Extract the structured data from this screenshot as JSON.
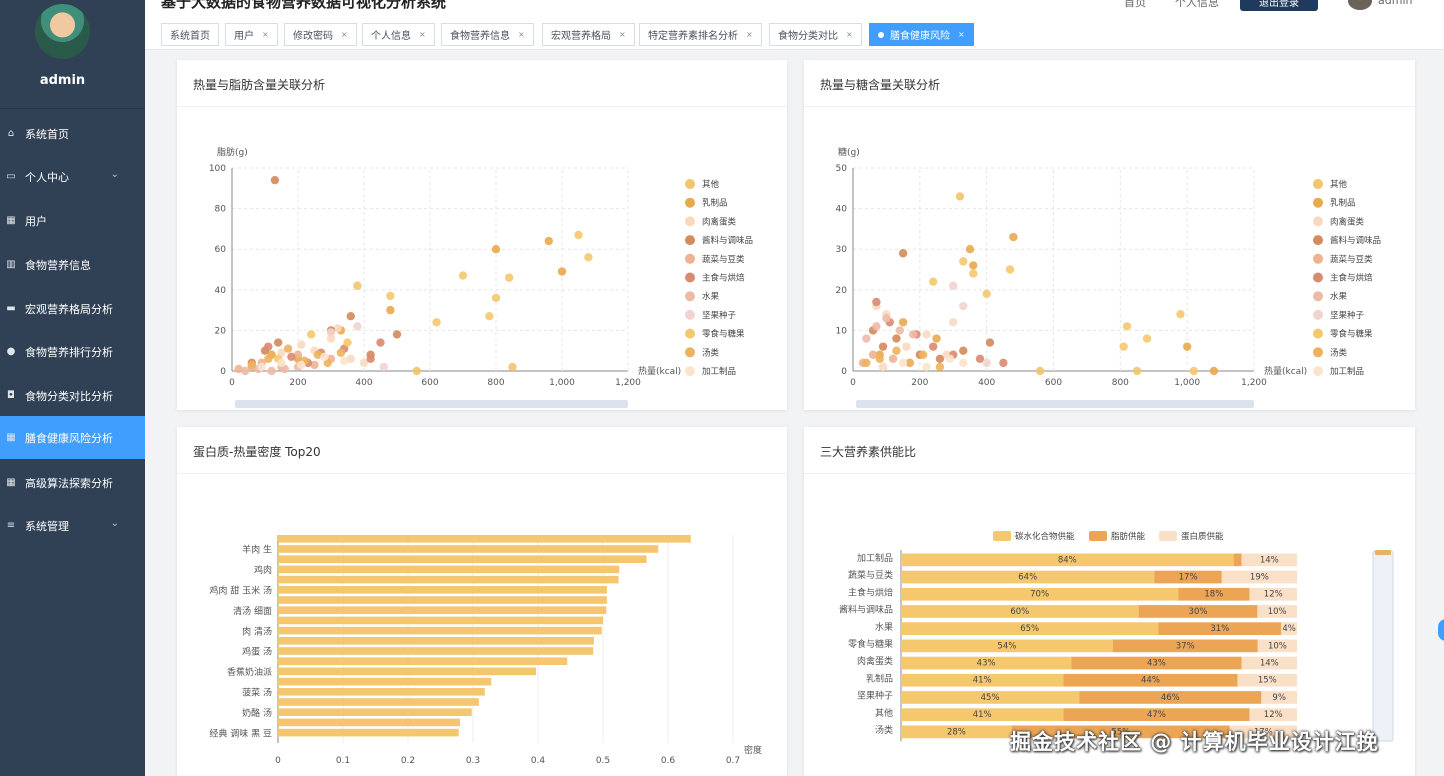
{
  "sidebar": {
    "username": "admin",
    "items": [
      {
        "label": "系统首页",
        "icon": "home-icon",
        "glyph": "⌂",
        "arrow": false,
        "active": false
      },
      {
        "label": "个人中心",
        "icon": "user-center-icon",
        "glyph": "▭",
        "arrow": true,
        "active": false
      },
      {
        "label": "用户",
        "icon": "grid-icon",
        "glyph": "▦",
        "arrow": false,
        "active": false
      },
      {
        "label": "食物营养信息",
        "icon": "bar-chart-icon",
        "glyph": "▥",
        "arrow": false,
        "active": false
      },
      {
        "label": "宏观营养格局分析",
        "icon": "monitor-icon",
        "glyph": "▬",
        "arrow": false,
        "active": false
      },
      {
        "label": "食物营养排行分析",
        "icon": "bulb-icon",
        "glyph": "●",
        "arrow": false,
        "active": false
      },
      {
        "label": "食物分类对比分析",
        "icon": "tag-icon",
        "glyph": "◘",
        "arrow": false,
        "active": false
      },
      {
        "label": "膳食健康风险分析",
        "icon": "grid-icon",
        "glyph": "▦",
        "arrow": false,
        "active": true
      },
      {
        "label": "高级算法探索分析",
        "icon": "grid-icon",
        "glyph": "▦",
        "arrow": false,
        "active": false
      },
      {
        "label": "系统管理",
        "icon": "sliders-icon",
        "glyph": "≡",
        "arrow": true,
        "active": false
      }
    ]
  },
  "topbar": {
    "title": "基于大数据的食物营养数据可视化分析系统",
    "link1": "首页",
    "link2": "个人信息",
    "button": "退出登录",
    "user": "admin"
  },
  "tabs": [
    {
      "label": "系统首页",
      "closable": false,
      "active": false
    },
    {
      "label": "用户",
      "closable": true,
      "active": false
    },
    {
      "label": "修改密码",
      "closable": true,
      "active": false
    },
    {
      "label": "个人信息",
      "closable": true,
      "active": false
    },
    {
      "label": "食物营养信息",
      "closable": true,
      "active": false
    },
    {
      "label": "宏观营养格局",
      "closable": true,
      "active": false
    },
    {
      "label": "特定营养素排名分析",
      "closable": true,
      "active": false
    },
    {
      "label": "食物分类对比",
      "closable": true,
      "active": false
    },
    {
      "label": "膳食健康风险",
      "closable": true,
      "active": true
    }
  ],
  "close_glyph": "×",
  "panels": {
    "p1": {
      "title": "热量与脂肪含量关联分析"
    },
    "p2": {
      "title": "热量与糖含量关联分析"
    },
    "p3": {
      "title": "蛋白质-热量密度 Top20"
    },
    "p4": {
      "title": "三大营养素供能比"
    }
  },
  "colors": {
    "sidebar": "#304156",
    "active": "#409eff",
    "categories": [
      "#f2c46d",
      "#e9a94e",
      "#f8d9c0",
      "#d38a5c",
      "#efb290",
      "#d98a72",
      "#edbaa8",
      "#f1d4cf",
      "#f5c86e",
      "#eeb15e",
      "#fbe3cc"
    ]
  },
  "watermark": "掘金技术社区 @ 计算机毕业设计江挽",
  "chart_data": [
    {
      "type": "scatter",
      "title": "",
      "xlabel": "热量(kcal)",
      "ylabel": "脂肪(g)",
      "xlim": [
        0,
        1200
      ],
      "ylim": [
        0,
        100
      ],
      "xticks": [
        "0",
        "200",
        "400",
        "600",
        "800",
        "1,000",
        "1,200"
      ],
      "yticks": [
        "0",
        "20",
        "40",
        "60",
        "80",
        "100"
      ],
      "legend_position": "right",
      "grid": true,
      "series": [
        {
          "name": "其他",
          "points": [
            [
              380,
              42
            ],
            [
              560,
              0
            ],
            [
              850,
              2
            ]
          ]
        },
        {
          "name": "乳制品",
          "points": [
            [
              120,
              8
            ],
            [
              200,
              6
            ],
            [
              330,
              20
            ],
            [
              480,
              30
            ],
            [
              800,
              60
            ],
            [
              960,
              64
            ],
            [
              1000,
              49
            ]
          ]
        },
        {
          "name": "肉禽蛋类",
          "points": [
            [
              150,
              9
            ],
            [
              210,
              13
            ],
            [
              250,
              10
            ],
            [
              300,
              16
            ],
            [
              360,
              6
            ],
            [
              400,
              4
            ],
            [
              320,
              21
            ]
          ]
        },
        {
          "name": "酱料与调味品",
          "points": [
            [
              130,
              94
            ],
            [
              60,
              4
            ],
            [
              100,
              10
            ],
            [
              140,
              14
            ],
            [
              300,
              20
            ],
            [
              360,
              27
            ],
            [
              420,
              8
            ],
            [
              500,
              18
            ]
          ]
        },
        {
          "name": "蔬菜与豆类",
          "points": [
            [
              20,
              1
            ],
            [
              60,
              2
            ],
            [
              90,
              4
            ],
            [
              150,
              2
            ],
            [
              200,
              8
            ],
            [
              250,
              3
            ],
            [
              300,
              6
            ]
          ]
        },
        {
          "name": "主食与烘焙",
          "points": [
            [
              110,
              12
            ],
            [
              180,
              7
            ],
            [
              230,
              4
            ],
            [
              270,
              9
            ],
            [
              340,
              11
            ],
            [
              420,
              6
            ],
            [
              450,
              14
            ]
          ]
        },
        {
          "name": "水果",
          "points": [
            [
              40,
              0
            ],
            [
              80,
              1
            ],
            [
              120,
              0
            ],
            [
              160,
              1
            ],
            [
              200,
              2
            ]
          ]
        },
        {
          "name": "坚果种子",
          "points": [
            [
              300,
              19
            ],
            [
              380,
              22
            ],
            [
              460,
              2
            ]
          ]
        },
        {
          "name": "零食与糖果",
          "points": [
            [
              140,
              6
            ],
            [
              240,
              18
            ],
            [
              350,
              14
            ],
            [
              480,
              37
            ],
            [
              700,
              47
            ],
            [
              780,
              27
            ],
            [
              800,
              36
            ],
            [
              840,
              46
            ],
            [
              1080,
              56
            ],
            [
              1050,
              67
            ],
            [
              620,
              24
            ]
          ]
        },
        {
          "name": "汤类",
          "points": [
            [
              60,
              3
            ],
            [
              110,
              6
            ],
            [
              170,
              11
            ],
            [
              220,
              5
            ],
            [
              260,
              8
            ],
            [
              290,
              4
            ],
            [
              330,
              9
            ]
          ]
        },
        {
          "name": "加工制品",
          "points": [
            [
              90,
              2
            ],
            [
              150,
              4
            ],
            [
              210,
              3
            ],
            [
              280,
              7
            ],
            [
              340,
              5
            ]
          ]
        }
      ]
    },
    {
      "type": "scatter",
      "title": "",
      "xlabel": "热量(kcal)",
      "ylabel": "糖(g)",
      "xlim": [
        0,
        1200
      ],
      "ylim": [
        0,
        50
      ],
      "xticks": [
        "0",
        "200",
        "400",
        "600",
        "800",
        "1,000",
        "1,200"
      ],
      "yticks": [
        "0",
        "10",
        "20",
        "30",
        "40",
        "50"
      ],
      "legend_position": "right",
      "grid": true,
      "series": [
        {
          "name": "其他",
          "points": [
            [
              320,
              43
            ],
            [
              560,
              0
            ],
            [
              850,
              0
            ]
          ]
        },
        {
          "name": "乳制品",
          "points": [
            [
              80,
              4
            ],
            [
              150,
              12
            ],
            [
              250,
              8
            ],
            [
              350,
              30
            ],
            [
              360,
              26
            ],
            [
              480,
              33
            ],
            [
              1000,
              6
            ],
            [
              1080,
              0
            ]
          ]
        },
        {
          "name": "肉禽蛋类",
          "points": [
            [
              70,
              16
            ],
            [
              100,
              14
            ],
            [
              160,
              6
            ],
            [
              220,
              9
            ],
            [
              280,
              4
            ],
            [
              300,
              12
            ]
          ]
        },
        {
          "name": "酱料与调味品",
          "points": [
            [
              150,
              29
            ],
            [
              60,
              10
            ],
            [
              90,
              6
            ],
            [
              130,
              8
            ],
            [
              200,
              4
            ],
            [
              260,
              3
            ],
            [
              330,
              5
            ],
            [
              410,
              7
            ]
          ]
        },
        {
          "name": "蔬菜与豆类",
          "points": [
            [
              30,
              2
            ],
            [
              60,
              4
            ],
            [
              90,
              1
            ],
            [
              120,
              3
            ],
            [
              170,
              2
            ]
          ]
        },
        {
          "name": "主食与烘焙",
          "points": [
            [
              70,
              17
            ],
            [
              110,
              12
            ],
            [
              190,
              9
            ],
            [
              240,
              6
            ],
            [
              300,
              4
            ],
            [
              380,
              3
            ],
            [
              450,
              2
            ]
          ]
        },
        {
          "name": "水果",
          "points": [
            [
              40,
              8
            ],
            [
              70,
              11
            ],
            [
              100,
              13
            ],
            [
              140,
              10
            ],
            [
              180,
              9
            ]
          ]
        },
        {
          "name": "坚果种子",
          "points": [
            [
              330,
              16
            ],
            [
              300,
              21
            ],
            [
              400,
              2
            ]
          ]
        },
        {
          "name": "零食与糖果",
          "points": [
            [
              240,
              22
            ],
            [
              330,
              27
            ],
            [
              360,
              24
            ],
            [
              400,
              19
            ],
            [
              470,
              25
            ],
            [
              820,
              11
            ],
            [
              880,
              8
            ],
            [
              980,
              14
            ],
            [
              1020,
              0
            ],
            [
              810,
              6
            ]
          ]
        },
        {
          "name": "汤类",
          "points": [
            [
              40,
              2
            ],
            [
              80,
              3
            ],
            [
              130,
              5
            ],
            [
              170,
              2
            ],
            [
              210,
              4
            ],
            [
              260,
              1
            ]
          ]
        },
        {
          "name": "加工制品",
          "points": [
            [
              90,
              1
            ],
            [
              150,
              2
            ],
            [
              220,
              1
            ],
            [
              290,
              3
            ],
            [
              330,
              2
            ]
          ]
        }
      ]
    },
    {
      "type": "bar",
      "title": "",
      "orientation": "horizontal",
      "xlabel": "密度",
      "xlim": [
        0,
        0.7
      ],
      "xticks": [
        "0",
        "0.1",
        "0.2",
        "0.3",
        "0.4",
        "0.5",
        "0.6",
        "0.7"
      ],
      "categories": [
        "经典 调味 黑 豆",
        "",
        "奶酪 汤",
        "",
        "菠菜 汤",
        "",
        "香蕉奶油派",
        "",
        "鸡蛋 汤",
        "",
        "肉 清汤",
        "",
        "清汤 细面",
        "",
        "鸡肉 甜 玉米 汤",
        "",
        "鸡肉",
        "",
        "羊肉 生",
        ""
      ],
      "values": [
        0.278,
        0.28,
        0.298,
        0.309,
        0.318,
        0.328,
        0.397,
        0.445,
        0.485,
        0.486,
        0.498,
        0.5,
        0.505,
        0.506,
        0.506,
        0.524,
        0.525,
        0.567,
        0.585,
        0.635
      ],
      "color": "#f3c66f"
    },
    {
      "type": "bar",
      "title": "",
      "orientation": "horizontal",
      "stacked": true,
      "legend_position": "top",
      "categories": [
        "加工制品",
        "蔬菜与豆类",
        "主食与烘焙",
        "酱料与调味品",
        "水果",
        "零食与糖果",
        "肉禽蛋类",
        "乳制品",
        "坚果种子",
        "其他",
        "汤类"
      ],
      "series": [
        {
          "name": "碳水化合物供能",
          "color": "#f5c86e",
          "values": [
            84,
            64,
            70,
            60,
            65,
            54,
            43,
            41,
            45,
            41,
            28
          ]
        },
        {
          "name": "脂肪供能",
          "color": "#eba554",
          "values": [
            2,
            17,
            18,
            30,
            31,
            37,
            43,
            44,
            46,
            47,
            55
          ]
        },
        {
          "name": "蛋白质供能",
          "color": "#fbe0c8",
          "values": [
            14,
            19,
            12,
            10,
            4,
            10,
            14,
            15,
            9,
            12,
            17
          ]
        }
      ]
    }
  ]
}
